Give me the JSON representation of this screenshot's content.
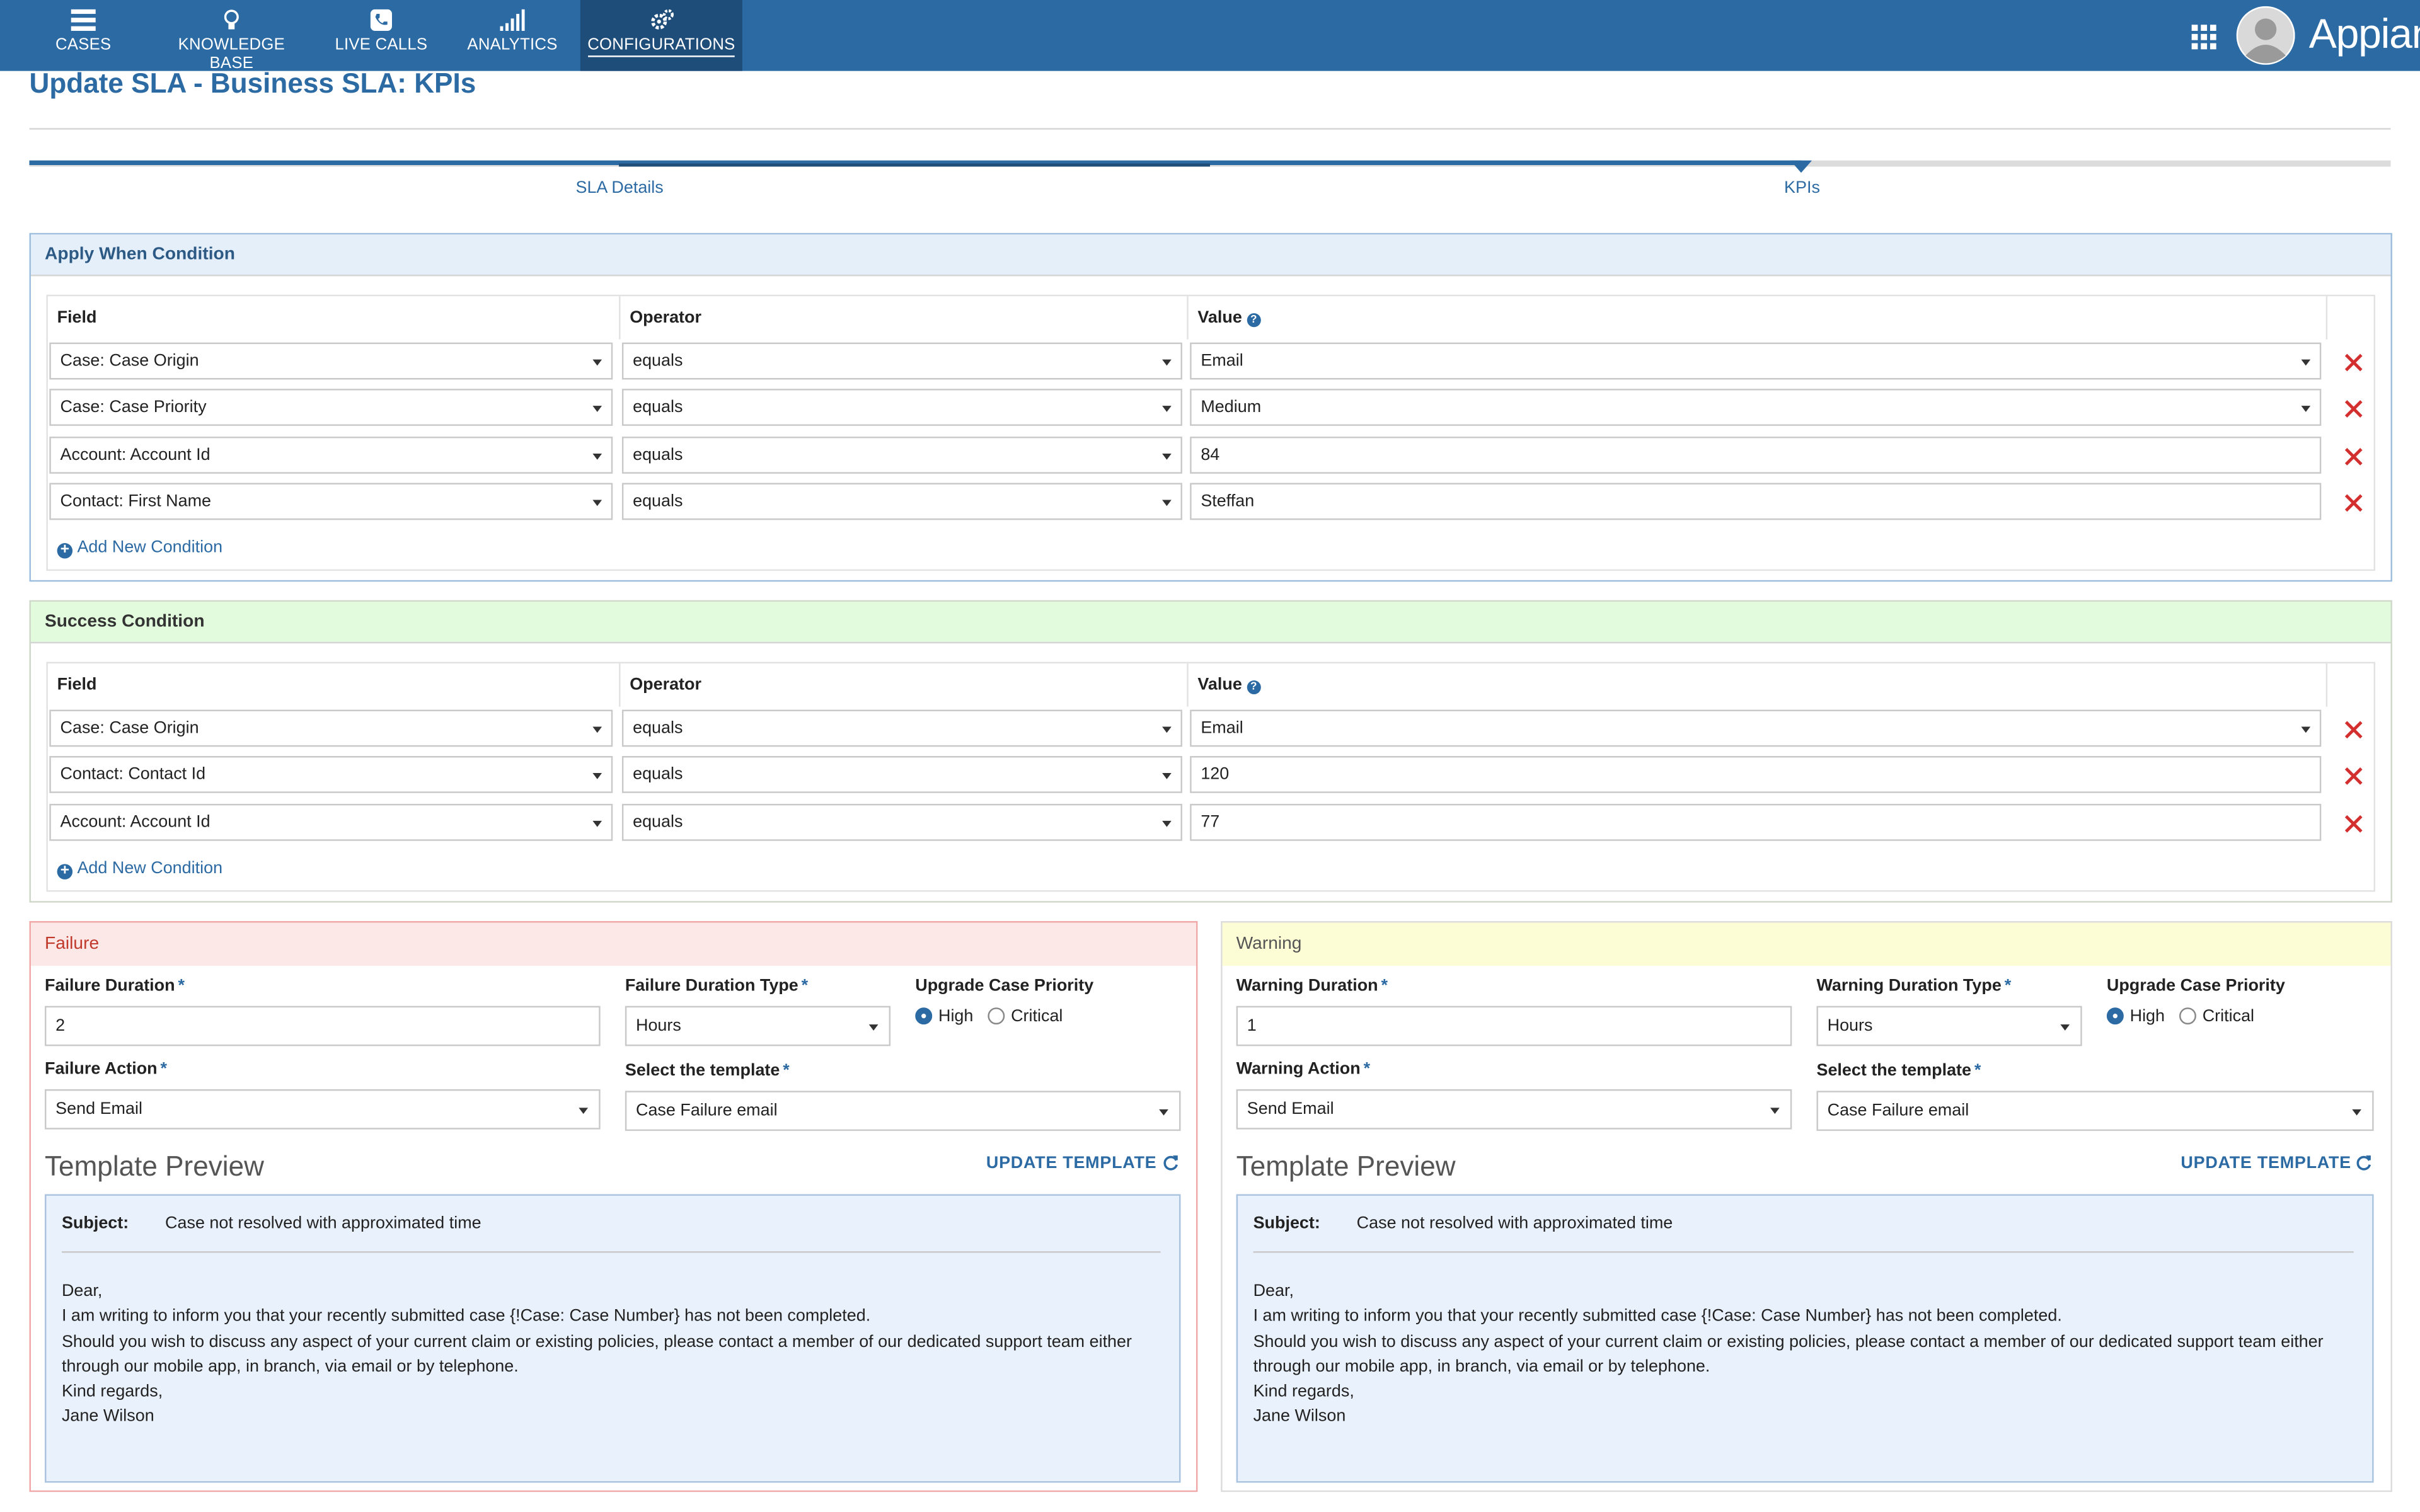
{
  "nav": {
    "items": [
      {
        "label": "CASES",
        "icon": "list-icon"
      },
      {
        "label": "KNOWLEDGE BASE",
        "icon": "lightbulb-icon"
      },
      {
        "label": "LIVE CALLS",
        "icon": "phone-icon"
      },
      {
        "label": "ANALYTICS",
        "icon": "bar-chart-icon"
      },
      {
        "label": "CONFIGURATIONS",
        "icon": "gears-icon",
        "active": true
      }
    ],
    "brand": "Appian"
  },
  "page_title": "Update SLA - Business SLA: KPIs",
  "stepper": {
    "steps": [
      "SLA Details",
      "KPIs"
    ],
    "current": "KPIs"
  },
  "apply_when": {
    "title": "Apply When Condition",
    "headers": {
      "field": "Field",
      "operator": "Operator",
      "value": "Value"
    },
    "rows": [
      {
        "field": "Case: Case Origin",
        "operator": "equals",
        "value": "Email",
        "value_dropdown": true
      },
      {
        "field": "Case: Case Priority",
        "operator": "equals",
        "value": "Medium",
        "value_dropdown": true
      },
      {
        "field": "Account: Account Id",
        "operator": "equals",
        "value": "84",
        "value_dropdown": false
      },
      {
        "field": "Contact: First Name",
        "operator": "equals",
        "value": "Steffan",
        "value_dropdown": false
      }
    ],
    "add_label": "Add New Condition"
  },
  "success": {
    "title": "Success Condition",
    "headers": {
      "field": "Field",
      "operator": "Operator",
      "value": "Value"
    },
    "rows": [
      {
        "field": "Case: Case Origin",
        "operator": "equals",
        "value": "Email",
        "value_dropdown": true
      },
      {
        "field": "Contact: Contact Id",
        "operator": "equals",
        "value": "120",
        "value_dropdown": false
      },
      {
        "field": "Account: Account Id",
        "operator": "equals",
        "value": "77",
        "value_dropdown": false
      }
    ],
    "add_label": "Add New Condition"
  },
  "failure": {
    "title": "Failure",
    "duration_label": "Failure Duration",
    "duration_value": "2",
    "duration_type_label": "Failure Duration Type",
    "duration_type_value": "Hours",
    "priority_label": "Upgrade Case Priority",
    "priority_options": [
      "High",
      "Critical"
    ],
    "priority_selected": "High",
    "action_label": "Failure Action",
    "action_value": "Send Email",
    "template_label": "Select the template",
    "template_value": "Case Failure email",
    "preview_title": "Template Preview",
    "update_label": "UPDATE TEMPLATE",
    "subject_label": "Subject:",
    "subject": "Case not resolved with approximated time",
    "body": "Dear,\nI am writing to inform you that your recently submitted case {!Case: Case Number} has not been completed.\nShould you wish to discuss any aspect of your current claim or existing policies, please contact a member of our dedicated support team either through our mobile app, in branch, via email or by telephone.\nKind regards,\nJane Wilson"
  },
  "warning": {
    "title": "Warning",
    "duration_label": "Warning Duration",
    "duration_value": "1",
    "duration_type_label": "Warning Duration Type",
    "duration_type_value": "Hours",
    "priority_label": "Upgrade Case Priority",
    "priority_options": [
      "High",
      "Critical"
    ],
    "priority_selected": "High",
    "action_label": "Warning Action",
    "action_value": "Send Email",
    "template_label": "Select the template",
    "template_value": "Case Failure email",
    "preview_title": "Template Preview",
    "update_label": "UPDATE TEMPLATE",
    "subject_label": "Subject:",
    "subject": "Case not resolved with approximated time",
    "body": "Dear,\nI am writing to inform you that your recently submitted case {!Case: Case Number} has not been completed.\nShould you wish to discuss any aspect of your current claim or existing policies, please contact a member of our dedicated support team either through our mobile app, in branch, via email or by telephone.\nKind regards,\nJane Wilson"
  },
  "colors": {
    "nav": "#2c6aa3",
    "nav_active": "#1f4d7a",
    "accent": "#2c6aa3",
    "delete": "#d32f2f",
    "apply_when_bg": "#e5effa",
    "success_bg": "#e3fbdd",
    "failure_bg": "#fde8e8",
    "warning_bg": "#fdfdd5",
    "preview_bg": "#e9f1fc"
  }
}
